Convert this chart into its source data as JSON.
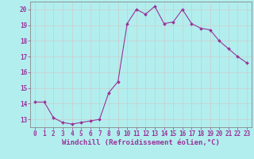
{
  "hours": [
    0,
    1,
    2,
    3,
    4,
    5,
    6,
    7,
    8,
    9,
    10,
    11,
    12,
    13,
    14,
    15,
    16,
    17,
    18,
    19,
    20,
    21,
    22,
    23
  ],
  "windchill": [
    14.1,
    14.1,
    13.1,
    12.8,
    12.7,
    12.8,
    12.9,
    13.0,
    14.7,
    15.4,
    19.1,
    20.0,
    19.7,
    20.2,
    19.1,
    19.2,
    20.0,
    19.1,
    18.8,
    18.7,
    18.0,
    17.5,
    17.0,
    16.6
  ],
  "line_color": "#993399",
  "marker": "D",
  "markersize": 2.0,
  "linewidth": 0.8,
  "xlabel": "Windchill (Refroidissement éolien,°C)",
  "xlabel_fontsize": 6.5,
  "ylabel_ticks": [
    13,
    14,
    15,
    16,
    17,
    18,
    19,
    20
  ],
  "xlim": [
    -0.5,
    23.5
  ],
  "ylim": [
    12.5,
    20.5
  ],
  "background_color": "#b2eeee",
  "grid_color": "#d0d0d0",
  "tick_color": "#993399",
  "tick_fontsize": 5.5,
  "spine_color": "#888888"
}
